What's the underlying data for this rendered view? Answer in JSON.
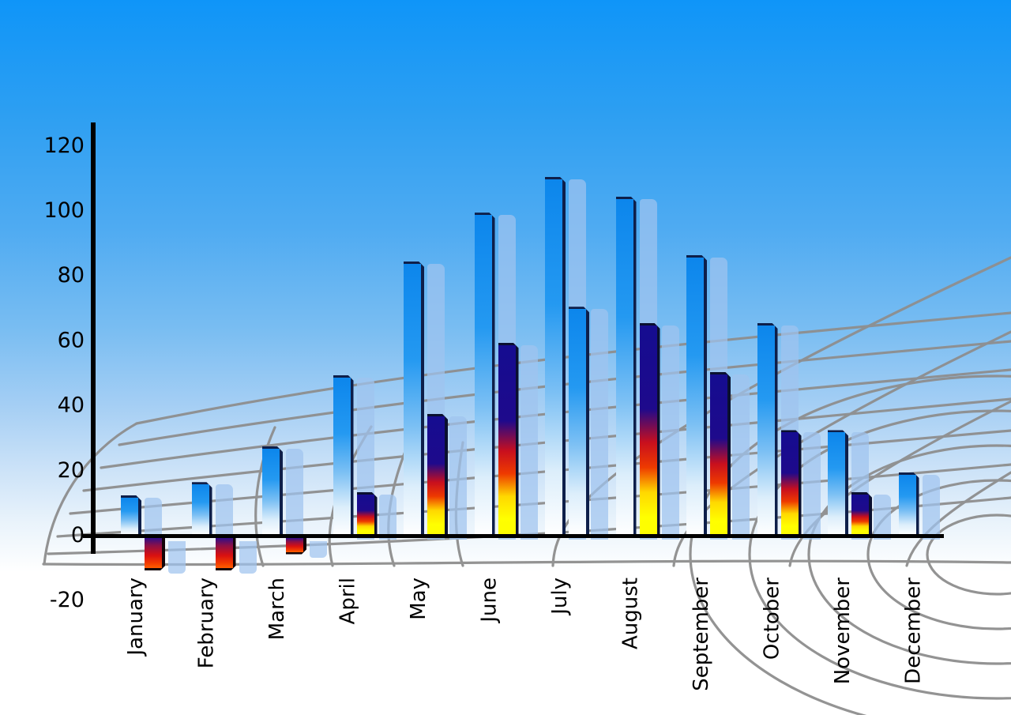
{
  "chart_data": {
    "type": "bar",
    "title": "",
    "xlabel": "",
    "ylabel": "",
    "categories": [
      "January",
      "February",
      "March",
      "April",
      "May",
      "June",
      "July",
      "August",
      "September",
      "October",
      "November",
      "December"
    ],
    "series": [
      {
        "name": "primary-blue-bars",
        "values": [
          12,
          16,
          27,
          49,
          84,
          99,
          110,
          104,
          86,
          65,
          32,
          19
        ]
      },
      {
        "name": "secondary-bars",
        "values": [
          -10,
          -10,
          -5,
          13,
          37,
          59,
          70,
          65,
          50,
          32,
          13,
          null
        ]
      }
    ],
    "second_bar_styles": [
      "negative",
      "negative",
      "negative",
      "rainbow",
      "rainbow",
      "rainbow",
      "blue",
      "rainbow",
      "rainbow",
      "rainbow",
      "rainbow",
      "none"
    ],
    "y_ticks": [
      120,
      100,
      80,
      60,
      40,
      20,
      0,
      -20
    ],
    "ylim": [
      -20,
      130
    ],
    "legend": "none",
    "grid": "curved-perspective-mesh"
  },
  "colors": {
    "sky_top": "#0f95f8",
    "sky_bottom": "#ffffff",
    "bar_blue_top": "#0c86ec",
    "bar_blue_bottom": "#ffffff",
    "bar_edge": "#0e1f4a",
    "shadow_bar": "rgba(160,195,238,0.72)",
    "rainbow_navy": "#1e0a8c",
    "rainbow_red": "#c80f1e",
    "rainbow_yellow": "#ffff00",
    "negative_bottom_orange": "#ff5f00",
    "grid_line": "#8e8e8e",
    "axis": "#000000",
    "label_text": "#000000"
  }
}
